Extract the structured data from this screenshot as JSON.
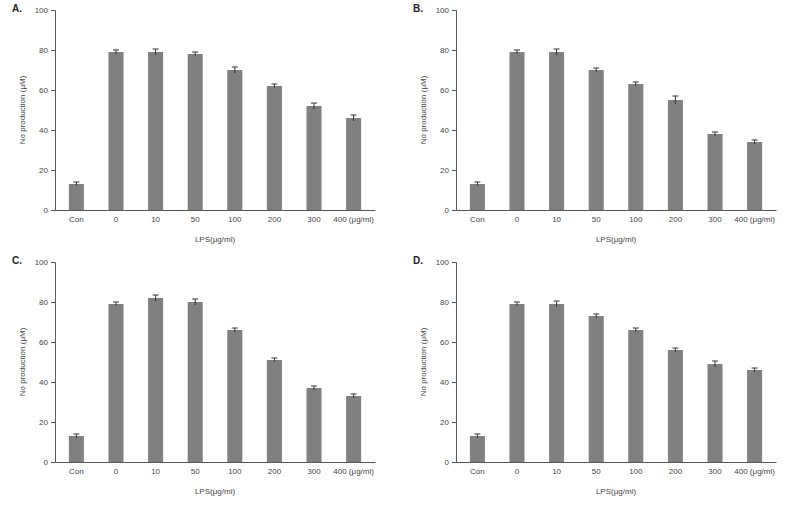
{
  "chart_data": [
    {
      "type": "bar",
      "title": "A.",
      "x_label": "LPS(μg/ml)",
      "y_label": "No production (μM)",
      "categories": [
        "Con",
        "0",
        "10",
        "50",
        "100",
        "200",
        "300",
        "400 (μg/ml)"
      ],
      "values": [
        13,
        79,
        79,
        78,
        70,
        62,
        52,
        46
      ],
      "errors": [
        1,
        1,
        1.5,
        1,
        1.5,
        1,
        1.5,
        1.5
      ],
      "color": "#808080",
      "ylim": [
        0,
        100
      ],
      "yticks": [
        0,
        20,
        40,
        60,
        80,
        100
      ],
      "grid": false
    },
    {
      "type": "bar",
      "title": "B.",
      "x_label": "LPS(μg/ml)",
      "y_label": "No production (μM)",
      "categories": [
        "Con",
        "0",
        "10",
        "50",
        "100",
        "200",
        "300",
        "400 (μg/ml)"
      ],
      "values": [
        13,
        79,
        79,
        70,
        63,
        55,
        38,
        34
      ],
      "errors": [
        1,
        1,
        1.5,
        1,
        1,
        2,
        1,
        1
      ],
      "color": "#808080",
      "ylim": [
        0,
        100
      ],
      "yticks": [
        0,
        20,
        40,
        60,
        80,
        100
      ],
      "grid": false
    },
    {
      "type": "bar",
      "title": "C.",
      "x_label": "LPS(μg/ml)",
      "y_label": "No production (μM)",
      "categories": [
        "Con",
        "0",
        "10",
        "50",
        "100",
        "200",
        "300",
        "400 (μg/ml)"
      ],
      "values": [
        13,
        79,
        82,
        80,
        66,
        51,
        37,
        33
      ],
      "errors": [
        1,
        1,
        1.5,
        1.5,
        1,
        1,
        1,
        1
      ],
      "color": "#808080",
      "ylim": [
        0,
        100
      ],
      "yticks": [
        0,
        20,
        40,
        60,
        80,
        100
      ],
      "grid": false
    },
    {
      "type": "bar",
      "title": "D.",
      "x_label": "LPS(μg/ml)",
      "y_label": "No production (μM)",
      "categories": [
        "Con",
        "0",
        "10",
        "50",
        "100",
        "200",
        "300",
        "400 (μg/ml)"
      ],
      "values": [
        13,
        79,
        79,
        73,
        66,
        56,
        49,
        46
      ],
      "errors": [
        1,
        1,
        1.5,
        1,
        1,
        1,
        1.5,
        1
      ],
      "color": "#808080",
      "ylim": [
        0,
        100
      ],
      "yticks": [
        0,
        20,
        40,
        60,
        80,
        100
      ],
      "grid": false
    }
  ]
}
